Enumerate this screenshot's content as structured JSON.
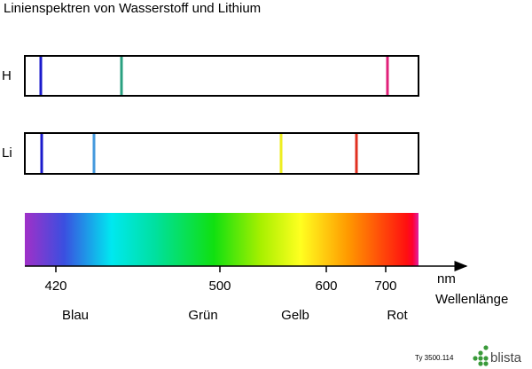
{
  "title": "Linienspektren von Wasserstoff und Lithium",
  "spectra": [
    {
      "label": "H"
    },
    {
      "label": "Li"
    }
  ],
  "axis": {
    "ticks": [
      "420",
      "500",
      "600",
      "700"
    ],
    "unit": "nm",
    "label": "Wellenlänge"
  },
  "color_names": [
    "Blau",
    "Grün",
    "Gelb",
    "Rot"
  ],
  "footer": {
    "code": "Ty 3500.114",
    "logo": "blista"
  }
}
